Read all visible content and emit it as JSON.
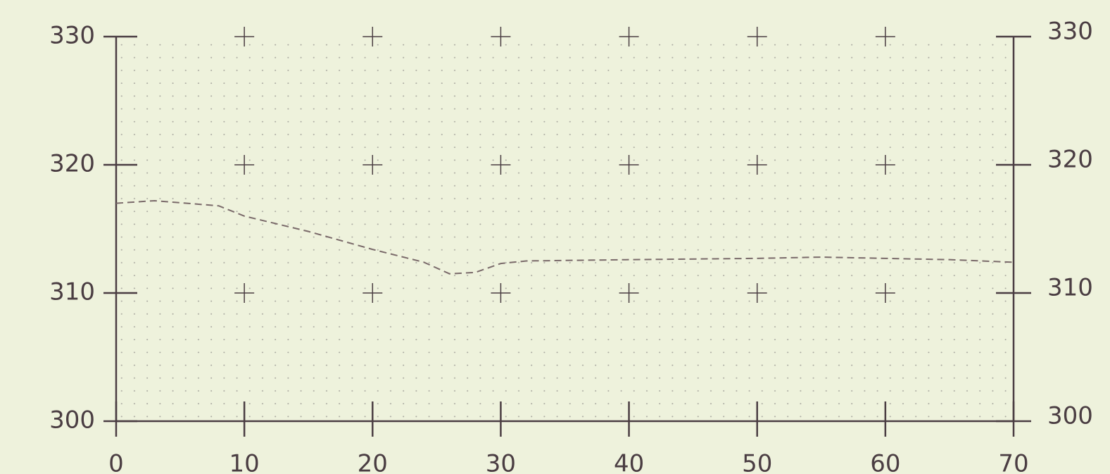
{
  "chart_data": {
    "type": "line",
    "x": [
      0,
      3,
      8,
      10,
      15,
      20,
      24,
      26,
      28,
      30,
      32,
      40,
      50,
      55,
      60,
      65,
      70
    ],
    "series": [
      {
        "color": "#7a6a6a",
        "values": [
          317,
          317.2,
          316.8,
          316,
          314.8,
          313.4,
          312.4,
          311.5,
          311.6,
          312.3,
          312.5,
          312.6,
          312.7,
          312.8,
          312.7,
          312.6,
          312.4
        ]
      }
    ],
    "xlim": [
      0,
      70
    ],
    "xticks": [
      0,
      10,
      20,
      30,
      40,
      50,
      60,
      70
    ],
    "ylim": [
      300,
      330
    ],
    "yticks": [
      300,
      310,
      320,
      330
    ],
    "y2lim": [
      300,
      330
    ],
    "y2ticks": [
      300,
      310,
      320,
      330
    ],
    "grid": true
  }
}
